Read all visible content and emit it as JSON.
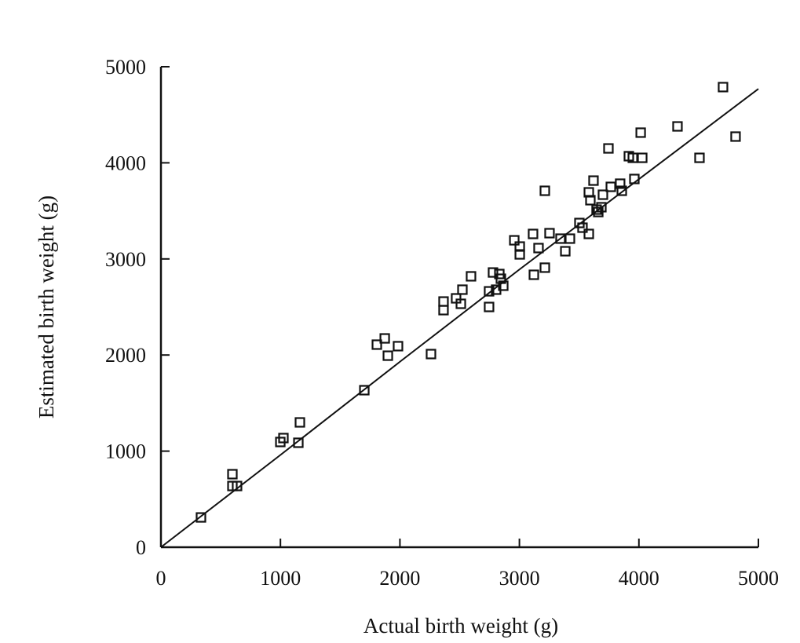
{
  "chart_data": {
    "type": "scatter",
    "title": "",
    "xlabel": "Actual birth weight (g)",
    "ylabel": "Estimated birth weight (g)",
    "xlim": [
      0,
      5000
    ],
    "ylim": [
      0,
      5000
    ],
    "xticks": [
      "0",
      "1000",
      "2000",
      "3000",
      "4000",
      "5000"
    ],
    "yticks": [
      "0",
      "1000",
      "2000",
      "3000",
      "4000",
      "5000"
    ],
    "grid": false,
    "marker": "open-square",
    "color": "#111111",
    "points": [
      [
        335,
        310
      ],
      [
        598,
        760
      ],
      [
        598,
        637
      ],
      [
        637,
        637
      ],
      [
        999,
        1095
      ],
      [
        1025,
        1136
      ],
      [
        1150,
        1087
      ],
      [
        1163,
        1299
      ],
      [
        1702,
        1634
      ],
      [
        1807,
        2108
      ],
      [
        1873,
        2173
      ],
      [
        1899,
        1993
      ],
      [
        1984,
        2092
      ],
      [
        2260,
        2010
      ],
      [
        2365,
        2557
      ],
      [
        2365,
        2467
      ],
      [
        2470,
        2590
      ],
      [
        2510,
        2533
      ],
      [
        2523,
        2680
      ],
      [
        2595,
        2819
      ],
      [
        2746,
        2500
      ],
      [
        2746,
        2663
      ],
      [
        2779,
        2859
      ],
      [
        2805,
        2680
      ],
      [
        2832,
        2843
      ],
      [
        2845,
        2794
      ],
      [
        2865,
        2721
      ],
      [
        2957,
        3194
      ],
      [
        3003,
        3129
      ],
      [
        3003,
        3047
      ],
      [
        3114,
        3260
      ],
      [
        3121,
        2835
      ],
      [
        3160,
        3113
      ],
      [
        3213,
        2909
      ],
      [
        3213,
        3709
      ],
      [
        3252,
        3268
      ],
      [
        3344,
        3211
      ],
      [
        3384,
        3080
      ],
      [
        3423,
        3211
      ],
      [
        3502,
        3374
      ],
      [
        3528,
        3325
      ],
      [
        3581,
        3260
      ],
      [
        3581,
        3693
      ],
      [
        3594,
        3611
      ],
      [
        3620,
        3815
      ],
      [
        3646,
        3513
      ],
      [
        3660,
        3488
      ],
      [
        3686,
        3538
      ],
      [
        3699,
        3668
      ],
      [
        3745,
        4150
      ],
      [
        3765,
        3750
      ],
      [
        3843,
        3783
      ],
      [
        3857,
        3709
      ],
      [
        3916,
        4069
      ],
      [
        3949,
        4052
      ],
      [
        3962,
        3832
      ],
      [
        4015,
        4314
      ],
      [
        4028,
        4052
      ],
      [
        4323,
        4379
      ],
      [
        4507,
        4052
      ],
      [
        4704,
        4788
      ],
      [
        4809,
        4273
      ]
    ],
    "fit_line": [
      [
        0,
        0
      ],
      [
        1000,
        960
      ],
      [
        2000,
        1930
      ],
      [
        3000,
        2890
      ],
      [
        4000,
        3830
      ],
      [
        5000,
        4770
      ]
    ]
  }
}
